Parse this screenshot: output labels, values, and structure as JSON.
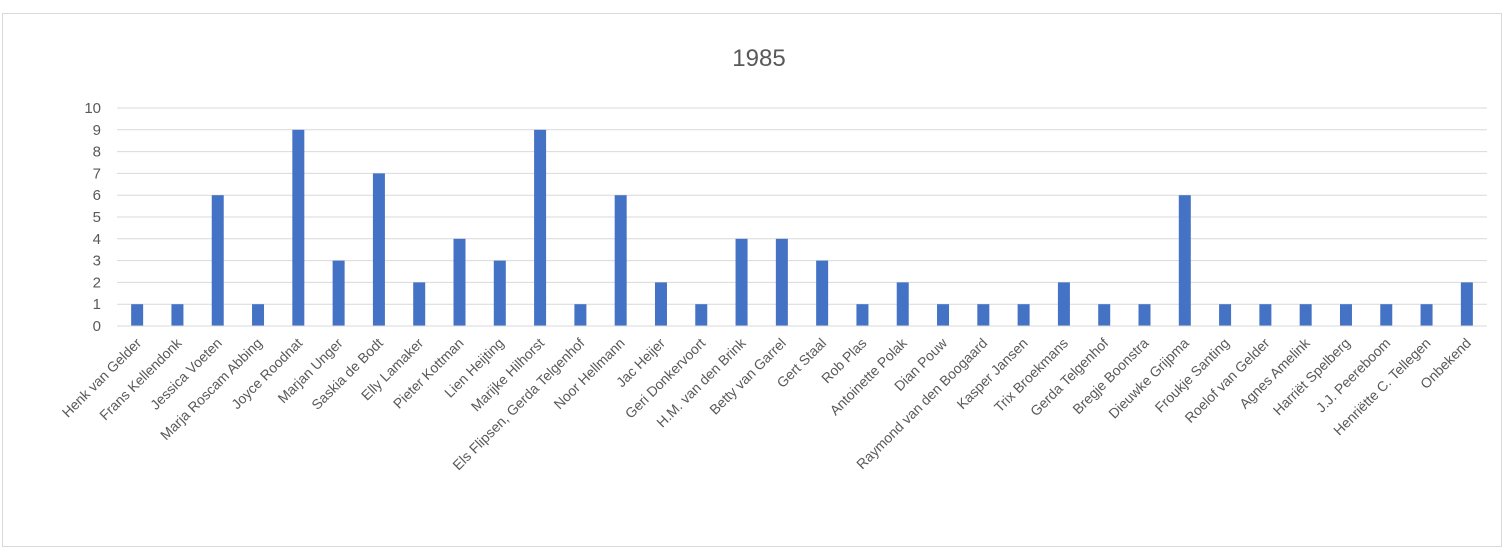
{
  "chart_data": {
    "type": "bar",
    "title": "1985",
    "xlabel": "",
    "ylabel": "",
    "ylim": [
      0,
      10
    ],
    "yticks": [
      0,
      1,
      2,
      3,
      4,
      5,
      6,
      7,
      8,
      9,
      10
    ],
    "grid": true,
    "legend": "none",
    "bar_color": "#4472c4",
    "categories": [
      "Henk van Gelder",
      "Frans Kellendonk",
      "Jessica Voeten",
      "Marja Roscam Abbing",
      "Joyce Roodnat",
      "Marjan Unger",
      "Saskia de Bodt",
      "Elly Lamaker",
      "Pieter Kottman",
      "Lien Heijting",
      "Marijke Hilhorst",
      "Els Flipsen, Gerda Telgenhof",
      "Noor Hellmann",
      "Jac Heijer",
      "Geri Donkervoort",
      "H.M. van den Brink",
      "Betty van Garrel",
      "Gert Staal",
      "Rob Plas",
      "Antoinette Polak",
      "Dian Pouw",
      "Raymond van den Boogaard",
      "Kasper Jansen",
      "Trix Broekmans",
      "Gerda Telgenhof",
      "Bregje Boonstra",
      "Dieuwke Grijpma",
      "Froukje Santing",
      "Roelof van Gelder",
      "Agnes Amelink",
      "Harriët Spelberg",
      "J.J. Peereboom",
      "Henriëtte C. Tellegen",
      "Onbekend"
    ],
    "values": [
      1,
      1,
      6,
      1,
      9,
      3,
      7,
      2,
      4,
      3,
      9,
      1,
      6,
      2,
      1,
      4,
      4,
      3,
      1,
      2,
      1,
      1,
      1,
      2,
      1,
      1,
      6,
      1,
      1,
      1,
      1,
      1,
      1,
      2
    ]
  }
}
